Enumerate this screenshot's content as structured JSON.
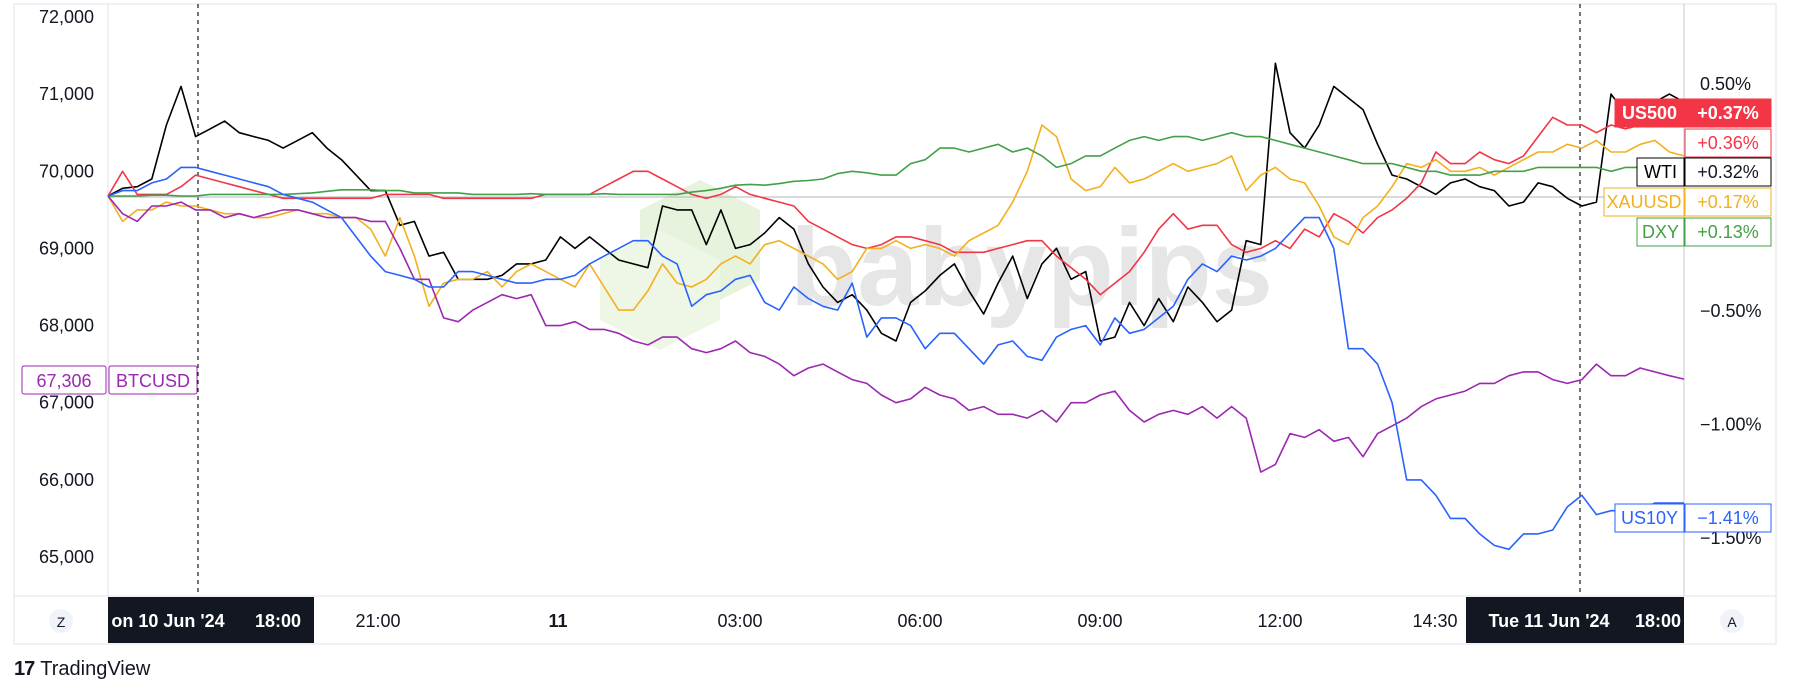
{
  "chart_data": {
    "type": "line",
    "watermark": "babypips",
    "footer_brand": "TradingView",
    "left_axis": {
      "ticks": [
        "72,000",
        "71,000",
        "70,000",
        "69,000",
        "68,000",
        "67,000",
        "66,000",
        "65,000"
      ],
      "tick_values": [
        72000,
        71000,
        70000,
        69000,
        68000,
        67000,
        66000,
        65000
      ],
      "ylim": [
        64500,
        72200
      ]
    },
    "right_axis": {
      "ticks": [
        "0.50%",
        "−0.50%",
        "−1.00%",
        "−1.50%"
      ],
      "tick_values": [
        0.5,
        -0.5,
        -1.0,
        -1.5
      ]
    },
    "time_axis": {
      "labels": [
        "on 10 Jun '24",
        "18:00",
        "21:00",
        "11",
        "03:00",
        "06:00",
        "09:00",
        "12:00",
        "14:30",
        "Tue 11 Jun '24",
        "18:00"
      ],
      "highlight_left": "on 10 Jun '24   18:00",
      "highlight_right": "Tue 11 Jun '24   18:00",
      "left_button": "Z",
      "right_button": "A"
    },
    "series": [
      {
        "name": "WTI",
        "color": "#000000",
        "label": "WTI",
        "value": "+0.32%",
        "values": [
          69680,
          69780,
          69800,
          69900,
          70600,
          71100,
          70450,
          70550,
          70650,
          70500,
          70450,
          70400,
          70300,
          70400,
          70500,
          70300,
          70150,
          69950,
          69750,
          69750,
          69300,
          69350,
          68900,
          68950,
          68600,
          68600,
          68600,
          68650,
          68800,
          68800,
          68850,
          69150,
          69000,
          69150,
          69000,
          68850,
          68800,
          68750,
          69550,
          69500,
          69500,
          69050,
          69500,
          69000,
          69050,
          69200,
          69400,
          69250,
          68800,
          68500,
          68300,
          68400,
          68200,
          67900,
          67800,
          68300,
          68450,
          68650,
          68800,
          68450,
          68150,
          68550,
          68900,
          68350,
          68800,
          69000,
          68600,
          68700,
          67800,
          67850,
          68300,
          68000,
          68350,
          68050,
          68500,
          68300,
          68050,
          68200,
          69100,
          69050,
          71400,
          70500,
          70300,
          70600,
          71100,
          70950,
          70800,
          70350,
          69950,
          69900,
          69800,
          69700,
          69850,
          69900,
          69800,
          69750,
          69550,
          69600,
          69850,
          69800,
          69650,
          69550,
          69600,
          71000,
          70750,
          70750,
          70900,
          71000,
          70900
        ]
      },
      {
        "name": "US500",
        "color": "#f23645",
        "label": "US500",
        "value": "+0.37%",
        "values": [
          69680,
          70000,
          69700,
          69700,
          69700,
          69800,
          69950,
          69900,
          69850,
          69800,
          69750,
          69700,
          69650,
          69650,
          69650,
          69650,
          69650,
          69650,
          69650,
          69700,
          69700,
          69700,
          69700,
          69650,
          69650,
          69650,
          69650,
          69650,
          69650,
          69650,
          69700,
          69700,
          69700,
          69700,
          69800,
          69900,
          70000,
          70000,
          69900,
          69800,
          69700,
          69650,
          69700,
          69800,
          69700,
          69650,
          69600,
          69550,
          69350,
          69250,
          69150,
          69050,
          69000,
          69050,
          69150,
          69150,
          69100,
          69050,
          68950,
          68950,
          68950,
          69000,
          69050,
          69100,
          69100,
          68900,
          68750,
          68600,
          68400,
          68550,
          68700,
          68950,
          69250,
          69450,
          69250,
          69300,
          69300,
          69050,
          68950,
          69000,
          69100,
          69000,
          69250,
          69150,
          69450,
          69350,
          69200,
          69400,
          69500,
          69650,
          69850,
          70250,
          70100,
          70100,
          70250,
          70150,
          70100,
          70200,
          70450,
          70700,
          70600,
          70600,
          70500,
          70600,
          70550,
          70600,
          70700,
          70650,
          70700
        ]
      },
      {
        "name": "XAUUSD",
        "color": "#f2b01e",
        "label": "XAUUSD",
        "value": "+0.17%",
        "values": [
          69680,
          69350,
          69500,
          69500,
          69600,
          69550,
          69550,
          69500,
          69450,
          69450,
          69400,
          69400,
          69450,
          69500,
          69450,
          69450,
          69400,
          69400,
          69250,
          68900,
          69400,
          68900,
          68250,
          68550,
          68600,
          68600,
          68700,
          68500,
          68700,
          68800,
          68700,
          68600,
          68500,
          68800,
          68500,
          68200,
          68200,
          68450,
          68800,
          68550,
          68500,
          68600,
          68800,
          68900,
          68800,
          69050,
          69100,
          69000,
          68900,
          68800,
          68600,
          68700,
          69000,
          69000,
          69100,
          69000,
          69050,
          69000,
          68900,
          69100,
          69200,
          69300,
          69600,
          70000,
          70600,
          70450,
          69900,
          69750,
          69800,
          70050,
          69850,
          69900,
          70000,
          70100,
          70000,
          70050,
          70100,
          70200,
          69750,
          69950,
          70050,
          69900,
          69850,
          69550,
          69150,
          69050,
          69400,
          69550,
          69800,
          70100,
          70050,
          70150,
          70000,
          70000,
          70050,
          69950,
          70050,
          70150,
          70250,
          70250,
          70350,
          70300,
          70400,
          70250,
          70250,
          70350,
          70400,
          70250,
          70200
        ]
      },
      {
        "name": "DXY",
        "color": "#43a047",
        "label": "DXY",
        "value": "+0.13%",
        "values": [
          69680,
          69680,
          69680,
          69690,
          69690,
          69680,
          69680,
          69700,
          69700,
          69700,
          69700,
          69700,
          69700,
          69710,
          69720,
          69740,
          69760,
          69760,
          69760,
          69750,
          69750,
          69720,
          69720,
          69720,
          69720,
          69700,
          69700,
          69700,
          69700,
          69710,
          69700,
          69700,
          69700,
          69700,
          69710,
          69700,
          69700,
          69700,
          69700,
          69700,
          69730,
          69750,
          69780,
          69820,
          69830,
          69820,
          69840,
          69870,
          69880,
          69900,
          69970,
          70000,
          69980,
          69950,
          69950,
          70100,
          70150,
          70300,
          70300,
          70250,
          70300,
          70350,
          70250,
          70300,
          70200,
          70050,
          70100,
          70200,
          70200,
          70300,
          70400,
          70450,
          70400,
          70450,
          70450,
          70400,
          70450,
          70500,
          70450,
          70450,
          70400,
          70350,
          70300,
          70250,
          70200,
          70150,
          70100,
          70100,
          70100,
          70050,
          70000,
          70000,
          69950,
          69950,
          69950,
          70000,
          70000,
          70000,
          70050,
          70050,
          70050,
          70050,
          70050,
          70000,
          70050,
          70050,
          70050,
          70050,
          70050
        ]
      },
      {
        "name": "BTCUSD",
        "color": "#9c27b0",
        "label": "BTCUSD",
        "value": "67,306",
        "values": [
          69680,
          69450,
          69350,
          69550,
          69550,
          69600,
          69500,
          69500,
          69400,
          69450,
          69400,
          69450,
          69500,
          69500,
          69450,
          69400,
          69400,
          69400,
          69350,
          69350,
          69000,
          68600,
          68600,
          68100,
          68050,
          68200,
          68300,
          68400,
          68350,
          68400,
          68000,
          68000,
          68050,
          67950,
          67950,
          67900,
          67800,
          67750,
          67850,
          67850,
          67700,
          67650,
          67700,
          67800,
          67650,
          67600,
          67500,
          67350,
          67450,
          67500,
          67400,
          67300,
          67250,
          67100,
          67000,
          67050,
          67200,
          67100,
          67050,
          66900,
          66950,
          66850,
          66850,
          66800,
          66900,
          66750,
          67000,
          67000,
          67100,
          67150,
          66900,
          66750,
          66850,
          66900,
          66850,
          66950,
          66800,
          66950,
          66800,
          66100,
          66200,
          66600,
          66550,
          66650,
          66500,
          66550,
          66300,
          66600,
          66700,
          66800,
          66950,
          67050,
          67100,
          67150,
          67250,
          67250,
          67350,
          67400,
          67400,
          67300,
          67250,
          67300,
          67500,
          67350,
          67350,
          67450,
          67400,
          67350,
          67306
        ]
      },
      {
        "name": "US10Y",
        "color": "#2962ff",
        "label": "US10Y",
        "value": "−1.41%",
        "values": [
          69680,
          69750,
          69750,
          69850,
          69900,
          70050,
          70050,
          70000,
          69950,
          69900,
          69850,
          69800,
          69700,
          69650,
          69600,
          69500,
          69400,
          69150,
          68900,
          68700,
          68650,
          68600,
          68500,
          68500,
          68700,
          68700,
          68650,
          68600,
          68550,
          68550,
          68600,
          68600,
          68650,
          68800,
          68900,
          69000,
          69100,
          69100,
          68900,
          68800,
          68250,
          68400,
          68450,
          68600,
          68650,
          68300,
          68200,
          68500,
          68350,
          68250,
          68200,
          68550,
          67850,
          68100,
          68100,
          68000,
          67700,
          67900,
          67900,
          67700,
          67500,
          67750,
          67800,
          67600,
          67550,
          67850,
          67950,
          68000,
          67750,
          68100,
          67900,
          67950,
          68100,
          68250,
          68600,
          68800,
          68700,
          68900,
          68850,
          68900,
          69000,
          69200,
          69400,
          69400,
          69000,
          67700,
          67700,
          67500,
          67000,
          66000,
          66000,
          65800,
          65500,
          65500,
          65300,
          65150,
          65100,
          65300,
          65300,
          65350,
          65650,
          65800,
          65550,
          65600,
          65600,
          65600,
          65700,
          65700,
          65700
        ]
      }
    ],
    "price_labels": {
      "BTCUSD_price": "67,306",
      "BTCUSD_name": "BTCUSD"
    }
  }
}
